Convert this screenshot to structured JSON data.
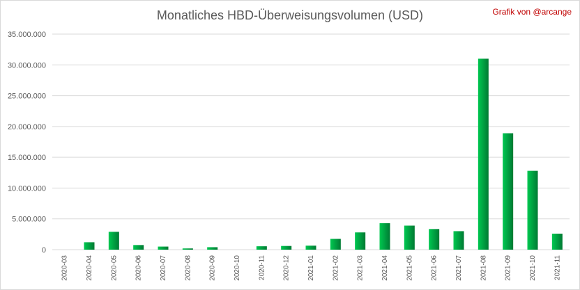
{
  "title": "Monatliches HBD-Überweisungsvolumen (USD)",
  "credit": "Grafik von @arcange",
  "colors": {
    "bar_light": "#00c850",
    "bar_dark": "#007a33",
    "grid": "#d9d9d9",
    "text": "#595959",
    "credit": "#c00000"
  },
  "chart_data": {
    "type": "bar",
    "title": "Monatliches HBD-Überweisungsvolumen (USD)",
    "xlabel": "",
    "ylabel": "",
    "ylim": [
      0,
      35000000
    ],
    "grid": true,
    "yticks": [
      0,
      5000000,
      10000000,
      15000000,
      20000000,
      25000000,
      30000000,
      35000000
    ],
    "ytick_labels": [
      "0",
      "5.000.000",
      "10.000.000",
      "15.000.000",
      "20.000.000",
      "25.000.000",
      "30.000.000",
      "35.000.000"
    ],
    "categories": [
      "2020-03",
      "2020-04",
      "2020-05",
      "2020-06",
      "2020-07",
      "2020-08",
      "2020-09",
      "2020-10",
      "2020-11",
      "2020-12",
      "2021-01",
      "2021-02",
      "2021-03",
      "2021-04",
      "2021-05",
      "2021-06",
      "2021-07",
      "2021-08",
      "2021-09",
      "2021-10",
      "2021-11"
    ],
    "values": [
      0,
      1200000,
      2900000,
      750000,
      500000,
      200000,
      400000,
      0,
      550000,
      600000,
      650000,
      1750000,
      2800000,
      4300000,
      3900000,
      3350000,
      3000000,
      31000000,
      18900000,
      12800000,
      2600000
    ]
  }
}
